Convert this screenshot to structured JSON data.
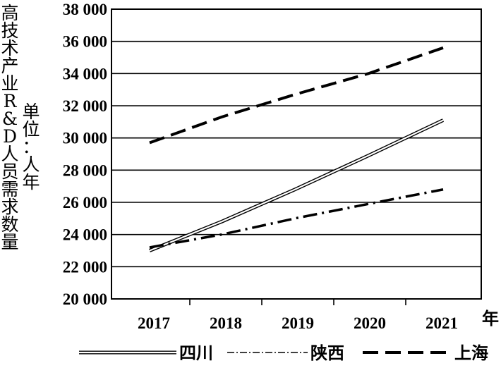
{
  "chart_data": {
    "type": "line",
    "ylabel": "高技术产业R&D人员需求数量",
    "unit_label": "单位：人年",
    "xlabel": "年",
    "categories": [
      "2017",
      "2018",
      "2019",
      "2020",
      "2021"
    ],
    "yticks": [
      "20 000",
      "22 000",
      "24 000",
      "26 000",
      "28 000",
      "30 000",
      "32 000",
      "34 000",
      "36 000",
      "38 000"
    ],
    "ylim": [
      20000,
      38000
    ],
    "grid": true,
    "legend_position": "bottom",
    "series": [
      {
        "name": "四川",
        "style": "double-line",
        "values": [
          23000,
          24800,
          26800,
          28900,
          31100
        ]
      },
      {
        "name": "陕西",
        "style": "dash-dot",
        "values": [
          23200,
          24000,
          25000,
          25900,
          26800
        ]
      },
      {
        "name": "上海",
        "style": "dashed",
        "values": [
          29700,
          31300,
          32700,
          34000,
          35600
        ]
      }
    ]
  }
}
